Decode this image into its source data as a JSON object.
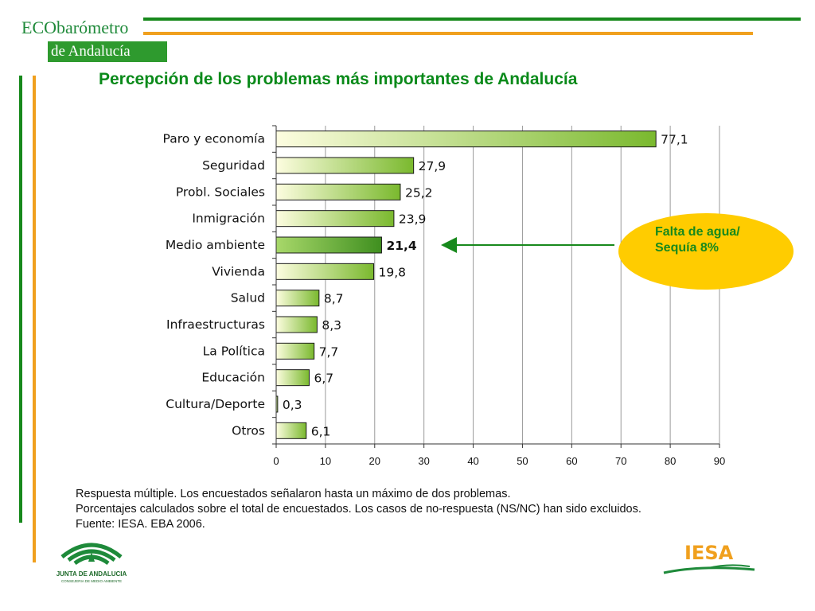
{
  "header": {
    "logo_prefix": "ECO",
    "logo_word": "barómetro",
    "logo_region": "de Andalucía",
    "title": "Percepción de los problemas más importantes de Andalucía"
  },
  "colors": {
    "green": "#17891c",
    "orange": "#f0a01e",
    "callout_fill": "#ffcc00",
    "bar_start": "#fdfde0",
    "bar_end": "#7ab92e",
    "bar_highlight": "#3f8f1f"
  },
  "chart_data": {
    "type": "bar",
    "orientation": "horizontal",
    "title": "Percepción de los problemas más importantes de Andalucía",
    "categories": [
      "Paro y economía",
      "Seguridad",
      "Probl. Sociales",
      "Inmigración",
      "Medio ambiente",
      "Vivienda",
      "Salud",
      "Infraestructuras",
      "La Política",
      "Educación",
      "Cultura/Deporte",
      "Otros"
    ],
    "values": [
      77.1,
      27.9,
      25.2,
      23.9,
      21.4,
      19.8,
      8.7,
      8.3,
      7.7,
      6.7,
      0.3,
      6.1
    ],
    "value_labels": [
      "77,1",
      "27,9",
      "25,2",
      "23,9",
      "21,4",
      "19,8",
      "8,7",
      "8,3",
      "7,7",
      "6,7",
      "0,3",
      "6,1"
    ],
    "highlighted_category": "Medio ambiente",
    "xlim": [
      0,
      90
    ],
    "x_ticks": [
      0,
      10,
      20,
      30,
      40,
      50,
      60,
      70,
      80,
      90
    ],
    "grid": true,
    "xlabel": "",
    "ylabel": ""
  },
  "callout": {
    "line1": "Falta de agua/",
    "line2": "Sequía 8%"
  },
  "notes": [
    "Respuesta múltiple. Los encuestados señalaron hasta un máximo de dos problemas.",
    "Porcentajes calculados sobre el total de encuestados. Los casos de no-respuesta (NS/NC) han sido excluidos.",
    "Fuente: IESA. EBA 2006."
  ],
  "footer": {
    "junta_name": "JUNTA DE ANDALUCIA",
    "junta_sub": "CONSEJERIA DE MEDIO AMBIENTE",
    "iesa_name": "IESA"
  }
}
